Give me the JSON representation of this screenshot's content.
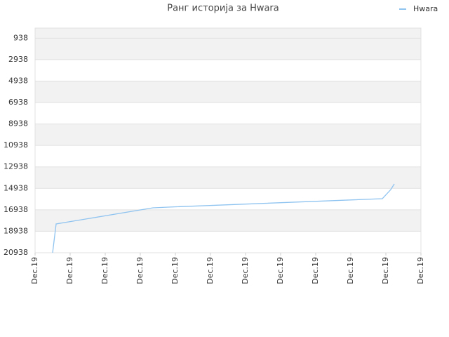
{
  "chart_data": {
    "type": "line",
    "title": "Ранг историја за Hwara",
    "x": [
      0.5,
      0.6,
      3.36,
      3.8,
      9.9,
      10.14,
      10.24
    ],
    "series": [
      {
        "name": "Hwara",
        "color": "#90c4f0",
        "values": [
          20938,
          18255,
          16750,
          16685,
          15900,
          15050,
          14526
        ]
      }
    ],
    "xlim": [
      0,
      11
    ],
    "xticks": [
      {
        "value": 0,
        "label": "Dec.19"
      },
      {
        "value": 1,
        "label": "Dec.19"
      },
      {
        "value": 2,
        "label": "Dec.19"
      },
      {
        "value": 3,
        "label": "Dec.19"
      },
      {
        "value": 4,
        "label": "Dec.19"
      },
      {
        "value": 5,
        "label": "Dec.19"
      },
      {
        "value": 6,
        "label": "Dec.19"
      },
      {
        "value": 7,
        "label": "Dec.19"
      },
      {
        "value": 8,
        "label": "Dec.19"
      },
      {
        "value": 9,
        "label": "Dec.19"
      },
      {
        "value": 10,
        "label": "Dec.19"
      },
      {
        "value": 11,
        "label": "Dec.19"
      }
    ],
    "ylim": [
      20938,
      0
    ],
    "yticks": [
      938,
      2938,
      4938,
      6938,
      8938,
      10938,
      12938,
      14938,
      16938,
      18938,
      20938
    ],
    "grid": true,
    "legend": "top-right"
  }
}
